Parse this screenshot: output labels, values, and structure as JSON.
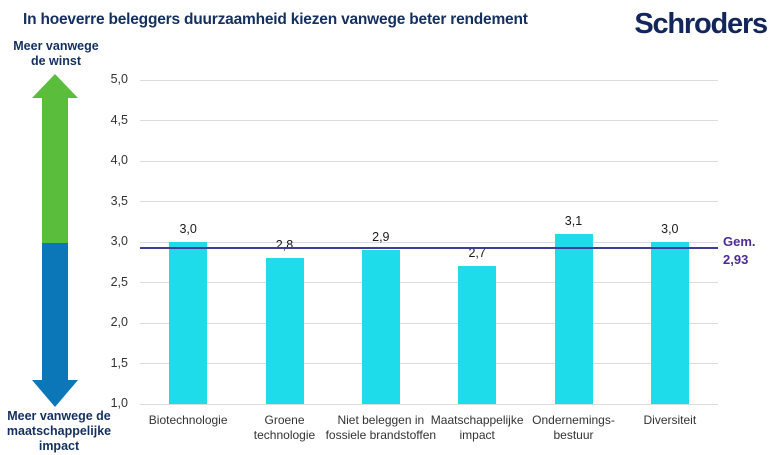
{
  "header": {
    "title": "In hoeverre beleggers duurzaamheid kiezen vanwege beter rendement",
    "logo": "Schroders"
  },
  "axis_annotation": {
    "top_label": "Meer vanwege\nde winst",
    "bottom_label": "Meer vanwege de\nmaatschappelijke\nimpact",
    "up_color": "#5ABE3C",
    "down_color": "#0C77B8"
  },
  "chart_data": {
    "type": "bar",
    "title": "In hoeverre beleggers duurzaamheid kiezen vanwege beter rendement",
    "categories": [
      "Biotechnologie",
      "Groene\ntechnologie",
      "Niet beleggen in\nfossiele brandstoffen",
      "Maatschappelijke\nimpact",
      "Ondernemings-\nbestuur",
      "Diversiteit"
    ],
    "values": [
      3.0,
      2.8,
      2.9,
      2.7,
      3.1,
      3.0
    ],
    "value_labels": [
      "3,0",
      "2,8",
      "2,9",
      "2,7",
      "3,1",
      "3,0"
    ],
    "xlabel": "",
    "ylabel": "",
    "ylim": [
      1.0,
      5.0
    ],
    "ytick_step": 0.5,
    "ytick_labels": [
      "1,0",
      "1,5",
      "2,0",
      "2,5",
      "3,0",
      "3,5",
      "4,0",
      "4,5",
      "5,0"
    ],
    "grid": true,
    "legend": "none",
    "bar_color": "#1EDCE9",
    "grid_color": "#dcdcdc",
    "mean": {
      "value": 2.93,
      "label": "Gem.",
      "value_label": "2,93",
      "line_color": "#3F3D9B",
      "text_color": "#4C2C92"
    }
  }
}
